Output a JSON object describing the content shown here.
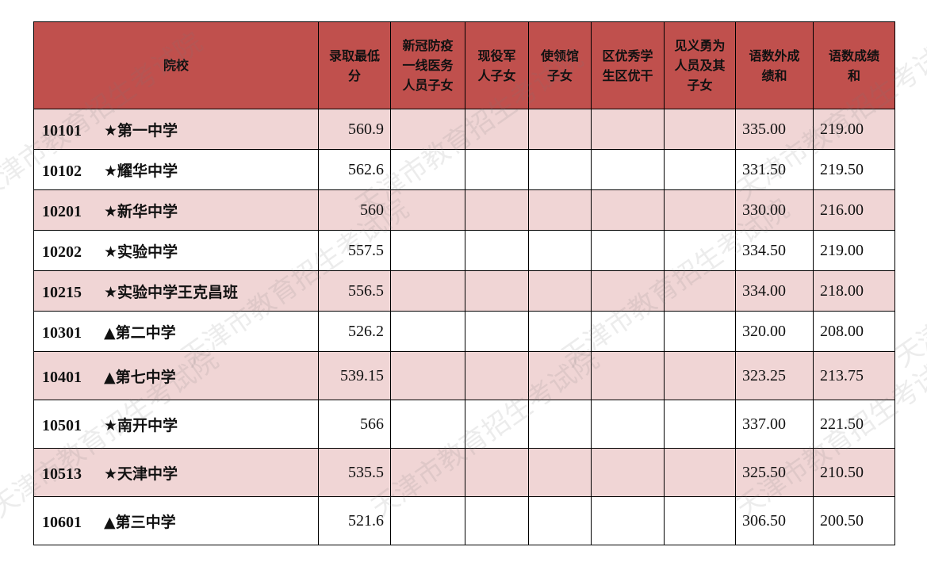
{
  "watermark": "天津市教育招生考试院",
  "colors": {
    "header": "#c0504d",
    "stripe": "#f0d5d5"
  },
  "headers": [
    "院校",
    "录取最低分",
    "新冠防疫一线医务人员子女",
    "现役军人子女",
    "使领馆子女",
    "区优秀学生区优干",
    "见义勇为人员及其子女",
    "语数外成绩和",
    "语数成绩和"
  ],
  "rows": [
    {
      "code": "10101",
      "name": "★第一中学",
      "min": "560.9",
      "c3": "335.00",
      "c2": "219.00"
    },
    {
      "code": "10102",
      "name": "★耀华中学",
      "min": "562.6",
      "c3": "331.50",
      "c2": "219.50"
    },
    {
      "code": "10201",
      "name": "★新华中学",
      "min": "560",
      "c3": "330.00",
      "c2": "216.00"
    },
    {
      "code": "10202",
      "name": "★实验中学",
      "min": "557.5",
      "c3": "334.50",
      "c2": "219.00"
    },
    {
      "code": "10215",
      "name": "★实验中学王克昌班",
      "min": "556.5",
      "c3": "334.00",
      "c2": "218.00"
    },
    {
      "code": "10301",
      "name": "▲第二中学",
      "min": "526.2",
      "c3": "320.00",
      "c2": "208.00"
    },
    {
      "code": "10401",
      "name": "▲第七中学",
      "min": "539.15",
      "c3": "323.25",
      "c2": "213.75"
    },
    {
      "code": "10501",
      "name": "★南开中学",
      "min": "566",
      "c3": "337.00",
      "c2": "221.50"
    },
    {
      "code": "10513",
      "name": "★天津中学",
      "min": "535.5",
      "c3": "325.50",
      "c2": "210.50"
    },
    {
      "code": "10601",
      "name": "▲第三中学",
      "min": "521.6",
      "c3": "306.50",
      "c2": "200.50"
    }
  ]
}
